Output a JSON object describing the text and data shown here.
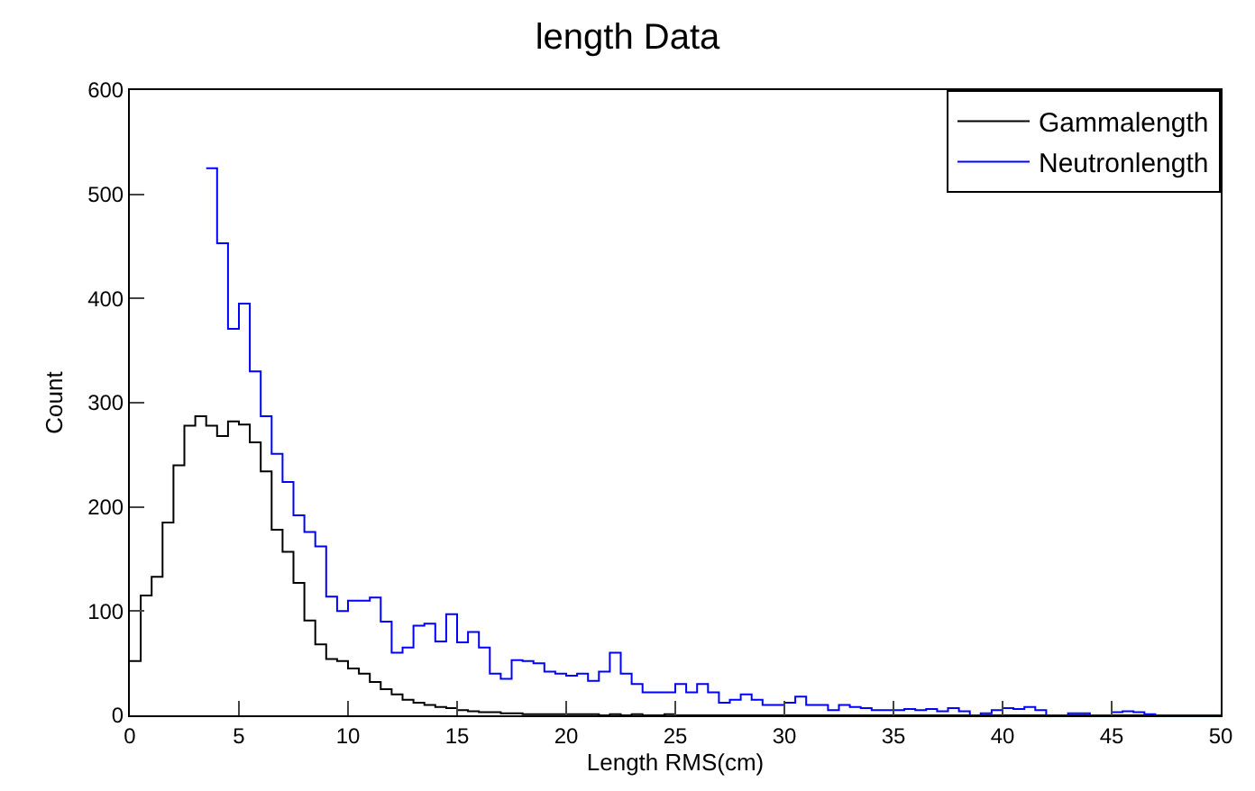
{
  "chart_data": {
    "type": "histogram",
    "title": "length Data",
    "xlabel": "Length RMS(cm)",
    "ylabel": "Count",
    "bins": [
      0,
      0.5,
      1,
      1.5,
      2,
      2.5,
      3,
      3.5,
      4,
      4.5,
      5,
      5.5,
      6,
      6.5,
      7,
      7.5,
      8,
      8.5,
      9,
      9.5,
      10,
      10.5,
      11,
      11.5,
      12,
      12.5,
      13,
      13.5,
      14,
      14.5,
      15,
      15.5,
      16,
      16.5,
      17,
      17.5,
      18,
      18.5,
      19,
      19.5,
      20,
      20.5,
      21,
      21.5,
      22,
      22.5,
      23,
      23.5,
      24,
      24.5,
      25,
      25.5,
      26,
      26.5,
      27,
      27.5,
      28,
      28.5,
      29,
      29.5,
      30,
      30.5,
      31,
      31.5,
      32,
      32.5,
      33,
      33.5,
      34,
      34.5,
      35,
      35.5,
      36,
      36.5,
      37,
      37.5,
      38,
      38.5,
      39,
      39.5,
      40,
      40.5,
      41,
      41.5,
      42,
      42.5,
      43,
      43.5,
      44,
      44.5,
      45,
      45.5,
      46,
      46.5,
      47,
      47.5,
      48,
      48.5,
      49,
      49.5,
      50
    ],
    "series": [
      {
        "name": "Gammalength",
        "color": "#000000",
        "values": [
          52,
          115,
          133,
          185,
          240,
          278,
          287,
          278,
          268,
          282,
          279,
          262,
          234,
          178,
          157,
          127,
          91,
          68,
          54,
          52,
          45,
          40,
          32,
          25,
          20,
          15,
          12,
          10,
          8,
          7,
          5,
          4,
          3,
          3,
          2,
          2,
          1,
          1,
          1,
          1,
          1,
          1,
          1,
          0,
          1,
          0,
          1,
          0,
          0,
          1,
          0,
          0,
          0,
          0,
          0,
          0,
          0,
          0,
          0,
          0,
          0,
          0,
          0,
          0,
          0,
          0,
          0,
          0,
          0,
          0,
          0,
          0,
          0,
          0,
          0,
          0,
          0,
          0,
          0,
          0,
          0,
          0,
          0,
          0,
          0,
          0,
          0,
          0,
          0,
          0,
          0,
          0,
          0,
          0,
          0,
          0,
          0,
          0,
          0,
          0
        ]
      },
      {
        "name": "Neutronlength",
        "color": "#0000ff",
        "bins": [
          3.5,
          4,
          4.5,
          5,
          5.5,
          6,
          6.5,
          7,
          7.5,
          8,
          8.5,
          9,
          9.5,
          10,
          10.5,
          11,
          11.5,
          12,
          12.5,
          13,
          13.5,
          14,
          14.5,
          15,
          15.5,
          16,
          16.5,
          17,
          17.5,
          18,
          18.5,
          19,
          19.5,
          20,
          20.5,
          21,
          21.5,
          22,
          22.5,
          23,
          23.5,
          24,
          24.5,
          25,
          25.5,
          26,
          26.5,
          27,
          27.5,
          28,
          28.5,
          29,
          29.5,
          30,
          30.5,
          31,
          31.5,
          32,
          32.5,
          33,
          33.5,
          34,
          34.5,
          35,
          35.5,
          36,
          36.5,
          37,
          37.5,
          38,
          38.5,
          39,
          39.5,
          40,
          40.5,
          41,
          41.5,
          42,
          42.5,
          43,
          43.5,
          44,
          44.5,
          45,
          45.5,
          46,
          46.5,
          47,
          47.5,
          48,
          48.5,
          49,
          49.5,
          50
        ],
        "values": [
          525,
          453,
          371,
          395,
          330,
          287,
          251,
          224,
          192,
          176,
          162,
          114,
          100,
          110,
          110,
          113,
          90,
          60,
          65,
          86,
          88,
          71,
          97,
          70,
          80,
          65,
          40,
          35,
          53,
          52,
          50,
          42,
          40,
          38,
          40,
          33,
          42,
          60,
          40,
          30,
          22,
          22,
          22,
          30,
          22,
          30,
          22,
          12,
          15,
          20,
          15,
          10,
          10,
          12,
          18,
          10,
          10,
          5,
          10,
          8,
          7,
          5,
          5,
          5,
          6,
          5,
          6,
          4,
          7,
          4,
          0,
          2,
          5,
          7,
          6,
          8,
          5,
          0,
          0,
          2,
          2,
          0,
          0,
          3,
          4,
          3,
          1,
          0,
          0,
          0,
          0,
          0,
          0
        ]
      }
    ],
    "xlim": [
      0,
      50
    ],
    "xticks": [
      0,
      5,
      10,
      15,
      20,
      25,
      30,
      35,
      40,
      45,
      50
    ],
    "ylim": [
      0,
      600
    ],
    "yticks": [
      0,
      100,
      200,
      300,
      400,
      500,
      600
    ],
    "legend": "top right"
  }
}
